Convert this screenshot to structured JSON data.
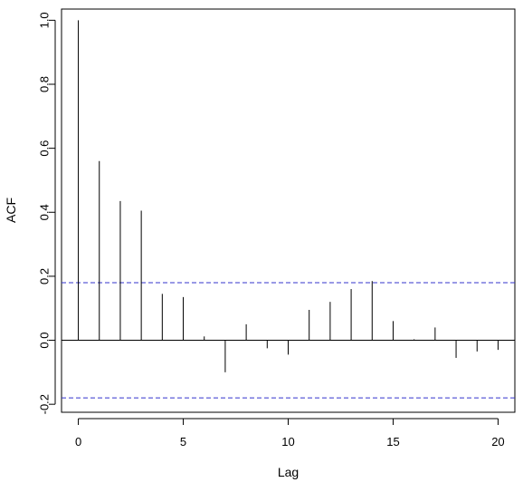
{
  "chart_data": {
    "type": "bar",
    "title": "",
    "xlabel": "Lag",
    "ylabel": "ACF",
    "x": [
      0,
      1,
      2,
      3,
      4,
      5,
      6,
      7,
      8,
      9,
      10,
      11,
      12,
      13,
      14,
      15,
      16,
      17,
      18,
      19,
      20
    ],
    "values": [
      1.0,
      0.56,
      0.435,
      0.405,
      0.145,
      0.135,
      0.012,
      -0.1,
      0.05,
      -0.025,
      -0.045,
      0.095,
      0.12,
      0.16,
      0.185,
      0.06,
      0.003,
      0.04,
      -0.055,
      -0.035,
      -0.03
    ],
    "confidence_band": [
      0.18,
      -0.18
    ],
    "confidence_band_color": "#3333cc",
    "bar_color": "#000000",
    "xlim": [
      -0.8,
      20.8
    ],
    "ylim": [
      -0.225,
      1.035
    ],
    "xticks": [
      0,
      5,
      10,
      15,
      20
    ],
    "xtick_labels": [
      "0",
      "5",
      "10",
      "15",
      "20"
    ],
    "yticks": [
      -0.2,
      0.0,
      0.2,
      0.4,
      0.6,
      0.8,
      1.0
    ],
    "ytick_labels": [
      "-0.2",
      "0.0",
      "0.2",
      "0.4",
      "0.6",
      "0.8",
      "1.0"
    ],
    "grid": false
  }
}
